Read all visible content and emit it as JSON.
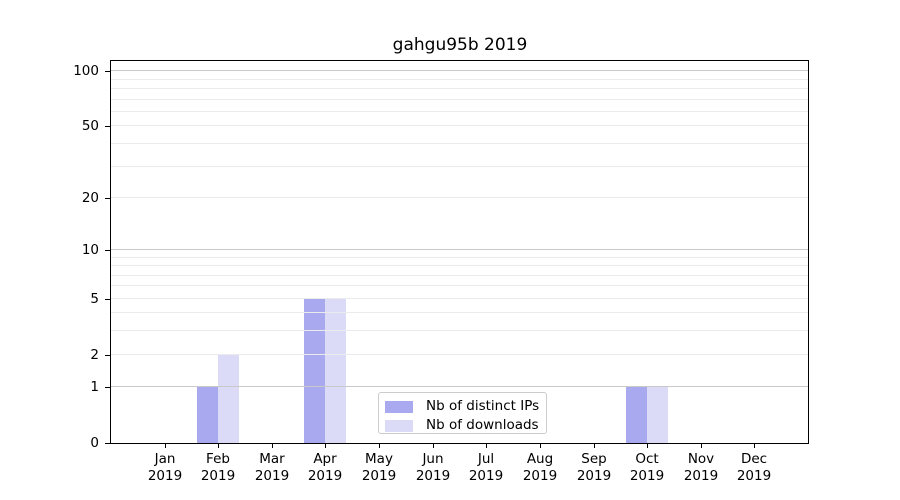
{
  "chart_data": {
    "type": "bar",
    "title": "gahgu95b 2019",
    "categories": [
      "Jan",
      "Feb",
      "Mar",
      "Apr",
      "May",
      "Jun",
      "Jul",
      "Aug",
      "Sep",
      "Oct",
      "Nov",
      "Dec"
    ],
    "category_sublabel": "2019",
    "series": [
      {
        "name": "Nb of distinct IPs",
        "color": "#a9a9f0",
        "values": [
          0,
          1,
          0,
          5,
          0,
          0,
          0,
          0,
          0,
          1,
          0,
          0
        ]
      },
      {
        "name": "Nb of downloads",
        "color": "#dbdbf8",
        "values": [
          0,
          2,
          0,
          5,
          0,
          0,
          0,
          0,
          0,
          1,
          0,
          0
        ]
      }
    ],
    "y_axis": {
      "scale": "log1p",
      "tick_values": [
        0,
        1,
        2,
        5,
        10,
        20,
        50,
        100
      ],
      "tick_labels": [
        "0",
        "1",
        "2",
        "5",
        "10",
        "20",
        "50",
        "100"
      ],
      "top_value": 114,
      "major_gridlines": [
        1,
        10,
        100
      ],
      "minor_gridlines": [
        2,
        3,
        4,
        5,
        6,
        7,
        8,
        9,
        20,
        30,
        40,
        50,
        60,
        70,
        80,
        90
      ]
    },
    "legend": {
      "position": "lower-center",
      "entries": [
        "Nb of distinct IPs",
        "Nb of downloads"
      ]
    },
    "colors": {
      "background": "#ffffff",
      "axis": "#000000",
      "grid_major": "#c9c9c9",
      "grid_minor": "#ebebeb",
      "legend_border": "#cccccc"
    }
  }
}
